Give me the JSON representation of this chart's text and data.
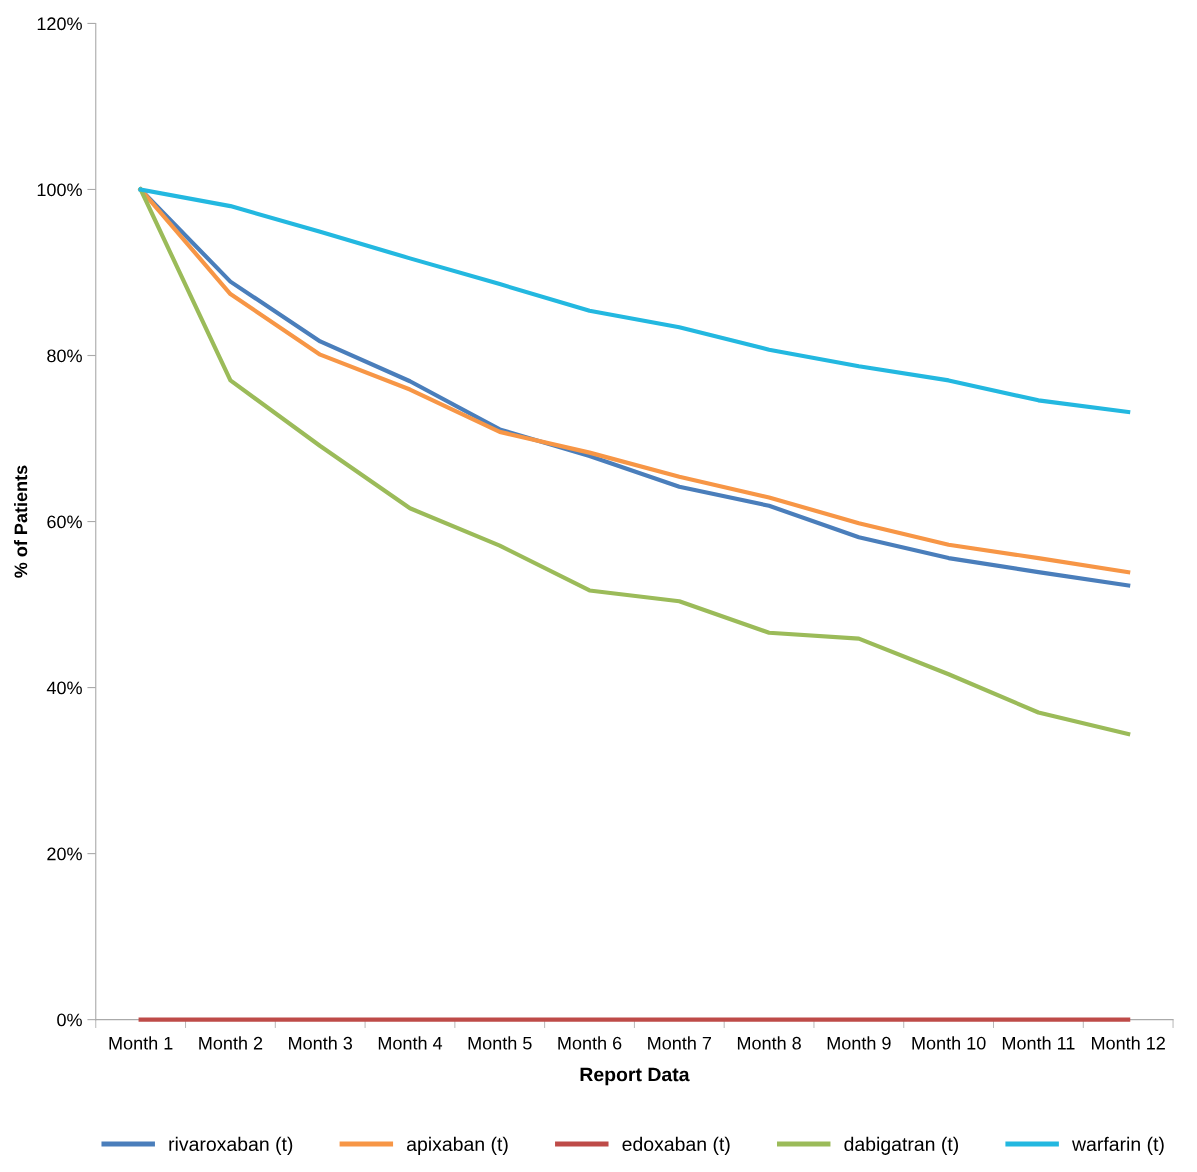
{
  "chart_data": {
    "type": "line",
    "xlabel": "Report Data",
    "ylabel": "% of Patients",
    "categories": [
      "Month 1",
      "Month 2",
      "Month 3",
      "Month 4",
      "Month 5",
      "Month 6",
      "Month 7",
      "Month 8",
      "Month 9",
      "Month 10",
      "Month 11",
      "Month 12"
    ],
    "series": [
      {
        "name": "rivaroxaban (t)",
        "color": "#4a7ebb",
        "values": [
          100,
          88.9,
          81.7,
          76.9,
          71.1,
          67.9,
          64.2,
          61.9,
          58.1,
          55.6,
          53.9,
          52.3
        ]
      },
      {
        "name": "apixaban (t)",
        "color": "#f79646",
        "values": [
          100,
          87.4,
          80.1,
          75.9,
          70.8,
          68.3,
          65.4,
          62.9,
          59.8,
          57.2,
          55.6,
          53.9
        ]
      },
      {
        "name": "edoxaban (t)",
        "color": "#be4b48",
        "values": [
          0,
          0,
          0,
          0,
          0,
          0,
          0,
          0,
          0,
          0,
          0,
          0
        ]
      },
      {
        "name": "dabigatran (t)",
        "color": "#9bbb59",
        "values": [
          100,
          77.0,
          69.1,
          61.6,
          57.1,
          51.7,
          50.4,
          46.6,
          45.9,
          41.6,
          37.0,
          34.4
        ]
      },
      {
        "name": "warfarin (t)",
        "color": "#23b8e0",
        "values": [
          100,
          98.0,
          94.9,
          91.7,
          88.6,
          85.4,
          83.4,
          80.7,
          78.7,
          77.0,
          74.6,
          73.2
        ]
      }
    ],
    "ylim": [
      0,
      120
    ],
    "yticks": [
      {
        "value": 0,
        "label": "0%"
      },
      {
        "value": 20,
        "label": "20%"
      },
      {
        "value": 40,
        "label": "40%"
      },
      {
        "value": 60,
        "label": "60%"
      },
      {
        "value": 80,
        "label": "80%"
      },
      {
        "value": 100,
        "label": "100%"
      },
      {
        "value": 120,
        "label": "120%"
      }
    ],
    "grid": false,
    "legend": "bottom",
    "marker": "none",
    "line_style": "solid"
  }
}
